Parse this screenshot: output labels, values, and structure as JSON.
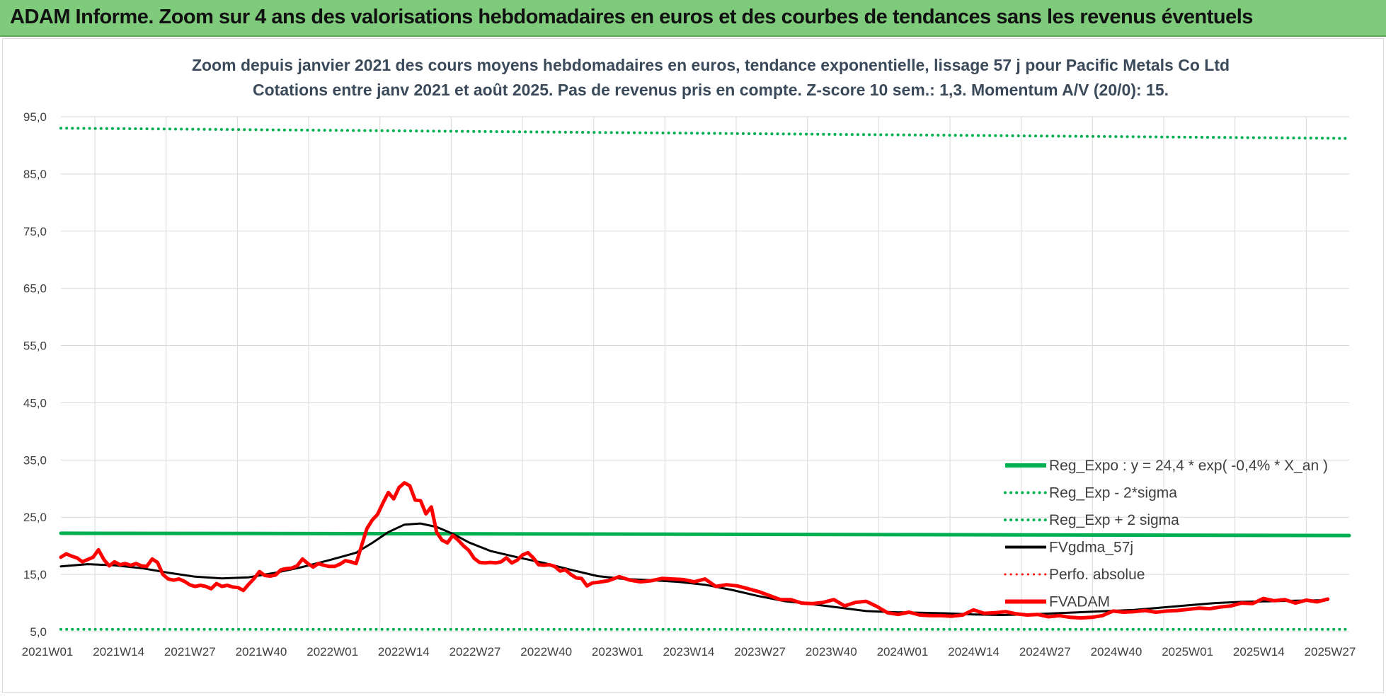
{
  "banner": {
    "title": "ADAM Informe. Zoom sur 4 ans des valorisations hebdomadaires en euros et des courbes de tendances sans les revenus éventuels"
  },
  "chart_data": {
    "type": "line",
    "title": "Zoom depuis janvier 2021 des cours moyens hebdomadaires en euros, tendance exponentielle, lissage 57 j pour Pacific Metals Co Ltd",
    "subtitle": "Cotations entre janv 2021 et août 2025.  Pas de revenus pris en compte. Z-score 10 sem.: 1,3. Momentum A/V (20/0): 15.",
    "xlabel": "",
    "ylabel": "",
    "ylim": [
      5,
      95
    ],
    "y_ticks": [
      "95,0",
      "85,0",
      "75,0",
      "65,0",
      "55,0",
      "45,0",
      "35,0",
      "25,0",
      "15,0",
      "5,0"
    ],
    "x_ticks": [
      "2021W01",
      "2021W14",
      "2021W27",
      "2021W40",
      "2022W01",
      "2022W14",
      "2022W27",
      "2022W40",
      "2023W01",
      "2023W14",
      "2023W27",
      "2023W40",
      "2024W01",
      "2024W14",
      "2024W27",
      "2024W40",
      "2025W01",
      "2025W14",
      "2025W27"
    ],
    "x_range_weeks": [
      0,
      240
    ],
    "grid": true,
    "legend_position": "bottom-right",
    "series": [
      {
        "name": "Reg_Expo : y = 24,4 * exp( -0,4% *  X_an )",
        "color": "#00b050",
        "style": "solid",
        "width": 5,
        "points": [
          [
            0,
            22.2
          ],
          [
            80,
            22.1
          ],
          [
            160,
            21.95
          ],
          [
            240,
            21.8
          ]
        ]
      },
      {
        "name": "Reg_Exp - 2*sigma",
        "color": "#00b050",
        "style": "dotted",
        "width": 4,
        "points": [
          [
            0,
            5.4
          ],
          [
            240,
            5.4
          ]
        ]
      },
      {
        "name": "Reg_Exp + 2 sigma",
        "color": "#00b050",
        "style": "dotted",
        "width": 4,
        "points": [
          [
            0,
            93.0
          ],
          [
            80,
            92.4
          ],
          [
            160,
            91.8
          ],
          [
            240,
            91.2
          ]
        ]
      },
      {
        "name": "FVgdma_57j",
        "color": "#000000",
        "style": "solid",
        "width": 3,
        "points": [
          [
            0,
            16.4
          ],
          [
            5,
            16.8
          ],
          [
            10,
            16.6
          ],
          [
            15,
            16.1
          ],
          [
            20,
            15.3
          ],
          [
            25,
            14.6
          ],
          [
            30,
            14.3
          ],
          [
            35,
            14.5
          ],
          [
            40,
            15.3
          ],
          [
            45,
            16.3
          ],
          [
            50,
            17.5
          ],
          [
            55,
            18.8
          ],
          [
            58,
            20.5
          ],
          [
            61,
            22.4
          ],
          [
            64,
            23.7
          ],
          [
            67,
            23.9
          ],
          [
            70,
            23.3
          ],
          [
            73,
            22.1
          ],
          [
            76,
            20.6
          ],
          [
            80,
            19.1
          ],
          [
            85,
            18.0
          ],
          [
            90,
            17.0
          ],
          [
            95,
            15.8
          ],
          [
            100,
            14.7
          ],
          [
            105,
            14.2
          ],
          [
            110,
            14.0
          ],
          [
            115,
            13.7
          ],
          [
            120,
            13.2
          ],
          [
            125,
            12.3
          ],
          [
            130,
            11.2
          ],
          [
            135,
            10.3
          ],
          [
            140,
            9.8
          ],
          [
            145,
            9.2
          ],
          [
            150,
            8.6
          ],
          [
            155,
            8.4
          ],
          [
            160,
            8.3
          ],
          [
            165,
            8.2
          ],
          [
            170,
            8.0
          ],
          [
            175,
            7.9
          ],
          [
            180,
            8.0
          ],
          [
            185,
            8.2
          ],
          [
            190,
            8.4
          ],
          [
            195,
            8.6
          ],
          [
            200,
            8.8
          ],
          [
            205,
            9.2
          ],
          [
            210,
            9.6
          ],
          [
            215,
            10.0
          ],
          [
            220,
            10.2
          ],
          [
            225,
            10.3
          ],
          [
            230,
            10.4
          ],
          [
            236,
            10.5
          ]
        ]
      },
      {
        "name": "Perfo. absolue",
        "color": "#ff0000",
        "style": "dotted",
        "width": 3,
        "points": []
      },
      {
        "name": "FVADAM",
        "color": "#ff0000",
        "style": "solid",
        "width": 5,
        "points": [
          [
            0,
            18.0
          ],
          [
            1,
            18.6
          ],
          [
            2,
            18.2
          ],
          [
            3,
            17.9
          ],
          [
            4,
            17.2
          ],
          [
            5,
            17.6
          ],
          [
            6,
            18.0
          ],
          [
            7,
            19.3
          ],
          [
            8,
            17.6
          ],
          [
            9,
            16.5
          ],
          [
            10,
            17.2
          ],
          [
            11,
            16.7
          ],
          [
            12,
            16.9
          ],
          [
            13,
            16.6
          ],
          [
            14,
            16.9
          ],
          [
            15,
            16.5
          ],
          [
            16,
            16.4
          ],
          [
            17,
            17.7
          ],
          [
            18,
            17.1
          ],
          [
            19,
            15.0
          ],
          [
            20,
            14.2
          ],
          [
            21,
            14.0
          ],
          [
            22,
            14.2
          ],
          [
            23,
            13.8
          ],
          [
            24,
            13.2
          ],
          [
            25,
            12.9
          ],
          [
            26,
            13.1
          ],
          [
            27,
            12.9
          ],
          [
            28,
            12.5
          ],
          [
            29,
            13.4
          ],
          [
            30,
            12.9
          ],
          [
            31,
            13.1
          ],
          [
            32,
            12.8
          ],
          [
            33,
            12.7
          ],
          [
            34,
            12.2
          ],
          [
            35,
            13.3
          ],
          [
            36,
            14.3
          ],
          [
            37,
            15.5
          ],
          [
            38,
            14.8
          ],
          [
            39,
            14.7
          ],
          [
            40,
            14.9
          ],
          [
            41,
            15.8
          ],
          [
            42,
            16.0
          ],
          [
            43,
            16.1
          ],
          [
            44,
            16.5
          ],
          [
            45,
            17.7
          ],
          [
            46,
            16.9
          ],
          [
            47,
            16.3
          ],
          [
            48,
            16.9
          ],
          [
            49,
            16.6
          ],
          [
            50,
            16.4
          ],
          [
            51,
            16.4
          ],
          [
            52,
            16.8
          ],
          [
            53,
            17.4
          ],
          [
            54,
            17.2
          ],
          [
            55,
            16.9
          ],
          [
            56,
            20.0
          ],
          [
            57,
            23.0
          ],
          [
            58,
            24.5
          ],
          [
            59,
            25.5
          ],
          [
            60,
            27.5
          ],
          [
            61,
            29.3
          ],
          [
            62,
            28.2
          ],
          [
            63,
            30.2
          ],
          [
            64,
            31.0
          ],
          [
            65,
            30.5
          ],
          [
            66,
            28.0
          ],
          [
            67,
            27.9
          ],
          [
            68,
            25.6
          ],
          [
            69,
            26.8
          ],
          [
            70,
            22.4
          ],
          [
            71,
            21.0
          ],
          [
            72,
            20.5
          ],
          [
            73,
            21.8
          ],
          [
            74,
            21.0
          ],
          [
            75,
            20.0
          ],
          [
            76,
            19.2
          ],
          [
            77,
            17.8
          ],
          [
            78,
            17.1
          ],
          [
            79,
            17.0
          ],
          [
            80,
            17.1
          ],
          [
            81,
            17.0
          ],
          [
            82,
            17.2
          ],
          [
            83,
            17.9
          ],
          [
            84,
            17.0
          ],
          [
            85,
            17.5
          ],
          [
            86,
            18.4
          ],
          [
            87,
            18.8
          ],
          [
            88,
            17.9
          ],
          [
            89,
            16.7
          ],
          [
            90,
            16.6
          ],
          [
            91,
            16.7
          ],
          [
            92,
            16.4
          ],
          [
            93,
            15.6
          ],
          [
            94,
            15.8
          ],
          [
            95,
            15.0
          ],
          [
            96,
            14.4
          ],
          [
            97,
            14.3
          ],
          [
            98,
            13.0
          ],
          [
            99,
            13.5
          ],
          [
            100,
            13.6
          ],
          [
            102,
            13.9
          ],
          [
            104,
            14.6
          ],
          [
            106,
            14.0
          ],
          [
            108,
            13.7
          ],
          [
            110,
            13.9
          ],
          [
            112,
            14.3
          ],
          [
            114,
            14.2
          ],
          [
            116,
            14.1
          ],
          [
            118,
            13.7
          ],
          [
            120,
            14.2
          ],
          [
            122,
            12.9
          ],
          [
            124,
            13.2
          ],
          [
            126,
            13.0
          ],
          [
            128,
            12.5
          ],
          [
            130,
            12.0
          ],
          [
            132,
            11.3
          ],
          [
            134,
            10.6
          ],
          [
            136,
            10.6
          ],
          [
            138,
            10.0
          ],
          [
            140,
            9.9
          ],
          [
            142,
            10.1
          ],
          [
            144,
            10.6
          ],
          [
            146,
            9.5
          ],
          [
            148,
            10.1
          ],
          [
            150,
            10.3
          ],
          [
            152,
            9.4
          ],
          [
            154,
            8.3
          ],
          [
            156,
            8.0
          ],
          [
            158,
            8.4
          ],
          [
            160,
            7.9
          ],
          [
            162,
            7.8
          ],
          [
            164,
            7.8
          ],
          [
            166,
            7.7
          ],
          [
            168,
            7.9
          ],
          [
            170,
            8.8
          ],
          [
            172,
            8.2
          ],
          [
            174,
            8.3
          ],
          [
            176,
            8.5
          ],
          [
            178,
            8.1
          ],
          [
            180,
            7.9
          ],
          [
            182,
            8.0
          ],
          [
            184,
            7.6
          ],
          [
            186,
            7.8
          ],
          [
            188,
            7.5
          ],
          [
            190,
            7.4
          ],
          [
            192,
            7.5
          ],
          [
            194,
            7.8
          ],
          [
            196,
            8.6
          ],
          [
            198,
            8.4
          ],
          [
            200,
            8.5
          ],
          [
            202,
            8.7
          ],
          [
            204,
            8.4
          ],
          [
            206,
            8.6
          ],
          [
            208,
            8.7
          ],
          [
            210,
            8.9
          ],
          [
            212,
            9.1
          ],
          [
            214,
            9.0
          ],
          [
            216,
            9.3
          ],
          [
            218,
            9.5
          ],
          [
            220,
            10.0
          ],
          [
            222,
            9.9
          ],
          [
            224,
            10.8
          ],
          [
            226,
            10.4
          ],
          [
            228,
            10.6
          ],
          [
            230,
            10.0
          ],
          [
            232,
            10.5
          ],
          [
            234,
            10.2
          ],
          [
            236,
            10.7
          ]
        ]
      }
    ]
  }
}
